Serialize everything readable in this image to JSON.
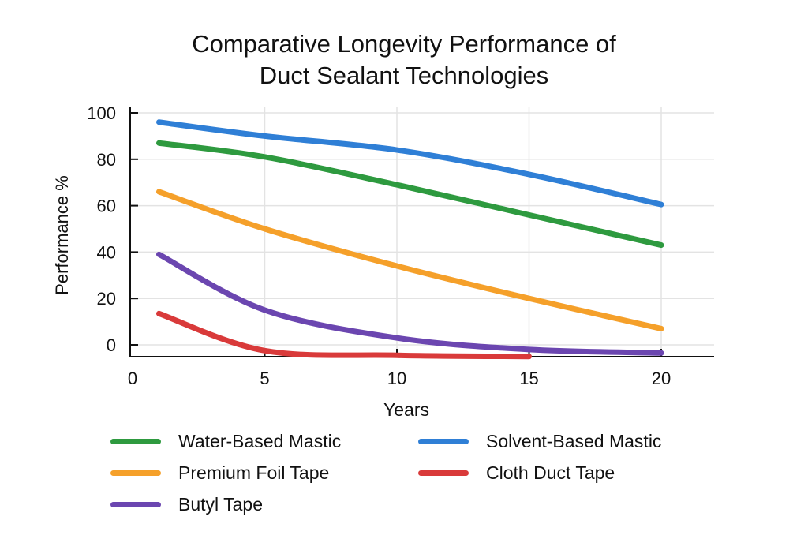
{
  "chart_data": {
    "type": "line",
    "title_lines": [
      "Comparative Longevity Performance of",
      "Duct Sealant Technologies"
    ],
    "xlabel": "Years",
    "ylabel": "Performance %",
    "xlim": [
      0,
      22
    ],
    "ylim": [
      -5,
      100
    ],
    "xticks": [
      0,
      5,
      10,
      15,
      20
    ],
    "yticks": [
      0,
      20,
      40,
      60,
      80,
      100
    ],
    "grid": true,
    "legend_position": "bottom",
    "series": [
      {
        "name": "Water-Based Mastic",
        "color": "#2e9a3f",
        "x": [
          1,
          5,
          10,
          15,
          20
        ],
        "y": [
          87,
          81,
          69,
          56,
          43
        ]
      },
      {
        "name": "Solvent-Based Mastic",
        "color": "#2f7fd6",
        "x": [
          1,
          5,
          10,
          15,
          20
        ],
        "y": [
          96,
          90,
          84,
          73.5,
          60.5
        ]
      },
      {
        "name": "Premium Foil Tape",
        "color": "#f5a02a",
        "x": [
          1,
          5,
          10,
          15,
          20
        ],
        "y": [
          66,
          50,
          34,
          20,
          7
        ]
      },
      {
        "name": "Cloth Duct Tape",
        "color": "#d93a3a",
        "x": [
          1,
          5,
          10,
          15
        ],
        "y": [
          13.5,
          -2.5,
          -4.5,
          -5
        ]
      },
      {
        "name": "Butyl Tape",
        "color": "#6b46b0",
        "x": [
          1,
          5,
          10,
          15,
          20
        ],
        "y": [
          39,
          15,
          3,
          -2,
          -3.5
        ]
      }
    ]
  }
}
